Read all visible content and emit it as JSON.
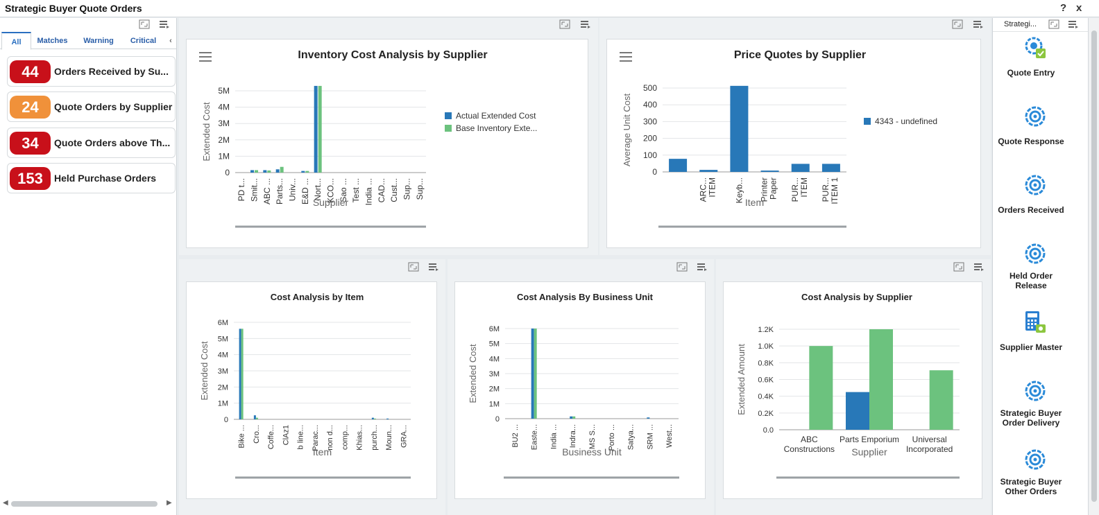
{
  "app": {
    "title": "Strategic Buyer Quote Orders",
    "help": "?",
    "close": "x"
  },
  "watchlist": {
    "tabs": [
      "All",
      "Matches",
      "Warning",
      "Critical"
    ],
    "items": [
      {
        "count": "44",
        "label": "Orders Received by Su...",
        "color": "#c8101a"
      },
      {
        "count": "24",
        "label": "Quote Orders by Supplier",
        "color": "#f0913a"
      },
      {
        "count": "34",
        "label": "Quote Orders above Th...",
        "color": "#c8101a"
      },
      {
        "count": "153",
        "label": "Held Purchase Orders",
        "color": "#c8101a"
      }
    ]
  },
  "springboard": {
    "header": "Strategi...",
    "tiles": [
      {
        "label": "Quote Entry",
        "icon": "quote-entry-icon"
      },
      {
        "label": "Quote Response",
        "icon": "target-icon"
      },
      {
        "label": "Orders Received",
        "icon": "target-icon"
      },
      {
        "label": "Held Order Release",
        "icon": "target-icon"
      },
      {
        "label": "Supplier Master",
        "icon": "calculator-icon"
      },
      {
        "label": "Strategic Buyer Order Delivery",
        "icon": "target-icon"
      },
      {
        "label": "Strategic Buyer Other Orders",
        "icon": "target-icon"
      }
    ]
  },
  "colors": {
    "blue": "#2878b8",
    "green": "#6cc27e"
  },
  "chart_data": [
    {
      "type": "bar",
      "title": "Inventory Cost Analysis by Supplier",
      "xlabel": "Supplier",
      "ylabel": "Extended Cost",
      "ylim": [
        0,
        5000000
      ],
      "yticks": [
        "0",
        "1M",
        "2M",
        "3M",
        "4M",
        "5M"
      ],
      "categories": [
        "PD t...",
        "Smit...",
        "ABC ...",
        "Parts...",
        "Univ...",
        "E&D ...",
        "Nort...",
        "KCO...",
        "Sao ...",
        "Test ...",
        "India ...",
        "CAD...",
        "Cust...",
        "Sup...",
        "Sup..."
      ],
      "series": [
        {
          "name": "Actual Extended Cost",
          "values": [
            0,
            150000,
            150000,
            200000,
            0,
            100000,
            5300000,
            0,
            0,
            0,
            0,
            0,
            0,
            0,
            0
          ]
        },
        {
          "name": "Base Inventory Exte...",
          "values": [
            0,
            150000,
            130000,
            350000,
            0,
            100000,
            5300000,
            0,
            0,
            0,
            0,
            0,
            0,
            0,
            0
          ]
        }
      ],
      "legend": "right"
    },
    {
      "type": "bar",
      "title": "Price Quotes by Supplier",
      "xlabel": "Item",
      "ylabel": "Average Unit Cost",
      "ylim": [
        0,
        500
      ],
      "yticks": [
        "0",
        "100",
        "200",
        "300",
        "400",
        "500"
      ],
      "categories": [
        "",
        "ARC... ITEM",
        "Keyb...",
        "Printer Paper",
        "PUR... ITEM",
        "PUR... ITEM 1"
      ],
      "series": [
        {
          "name": "4343 - undefined",
          "values": [
            78,
            12,
            513,
            8,
            48,
            48
          ]
        }
      ],
      "legend": "right"
    },
    {
      "type": "bar",
      "title": "Cost Analysis by Item",
      "xlabel": "Item",
      "ylabel": "Extended Cost",
      "ylim": [
        0,
        6000000
      ],
      "yticks": [
        "0",
        "1M",
        "2M",
        "3M",
        "4M",
        "5M",
        "6M"
      ],
      "categories": [
        "Bike ...",
        "Cro...",
        "Coffe...",
        "ClAz1",
        "b line...",
        "Parac...",
        "non d...",
        "comp...",
        "Khias...",
        "purch...",
        "Moun...",
        "GRA..."
      ],
      "series": [
        {
          "name": "",
          "values": [
            5600000,
            250000,
            0,
            0,
            0,
            0,
            0,
            0,
            0,
            100000,
            50000,
            0
          ]
        },
        {
          "name": "",
          "values": [
            5600000,
            100000,
            0,
            0,
            0,
            0,
            0,
            0,
            0,
            50000,
            0,
            0
          ]
        }
      ]
    },
    {
      "type": "bar",
      "title": "Cost Analysis By Business Unit",
      "xlabel": "Business Unit",
      "ylabel": "Extended Cost",
      "ylim": [
        0,
        6000000
      ],
      "yticks": [
        "0",
        "1M",
        "2M",
        "3M",
        "4M",
        "5M",
        "6M"
      ],
      "categories": [
        "BU2 ...",
        "Easte...",
        "India ...",
        "Indra...",
        "MS S...",
        "Porto ...",
        "Satya...",
        "SRM ...",
        "West..."
      ],
      "series": [
        {
          "name": "",
          "values": [
            0,
            6000000,
            0,
            150000,
            0,
            0,
            0,
            80000,
            0
          ]
        },
        {
          "name": "",
          "values": [
            0,
            6000000,
            0,
            150000,
            0,
            0,
            0,
            0,
            0
          ]
        }
      ]
    },
    {
      "type": "bar",
      "title": "Cost Analysis by Supplier",
      "xlabel": "Supplier",
      "ylabel": "Extended Amount",
      "ylim": [
        0,
        1200
      ],
      "yticks": [
        "0.0",
        "0.2K",
        "0.4K",
        "0.6K",
        "0.8K",
        "1.0K",
        "1.2K"
      ],
      "categories": [
        "ABC Constructions",
        "Parts Emporium",
        "Universal Incorporated"
      ],
      "series": [
        {
          "name": "",
          "values": [
            0,
            450,
            0
          ]
        },
        {
          "name": "",
          "values": [
            1000,
            1200,
            710
          ]
        }
      ]
    }
  ]
}
